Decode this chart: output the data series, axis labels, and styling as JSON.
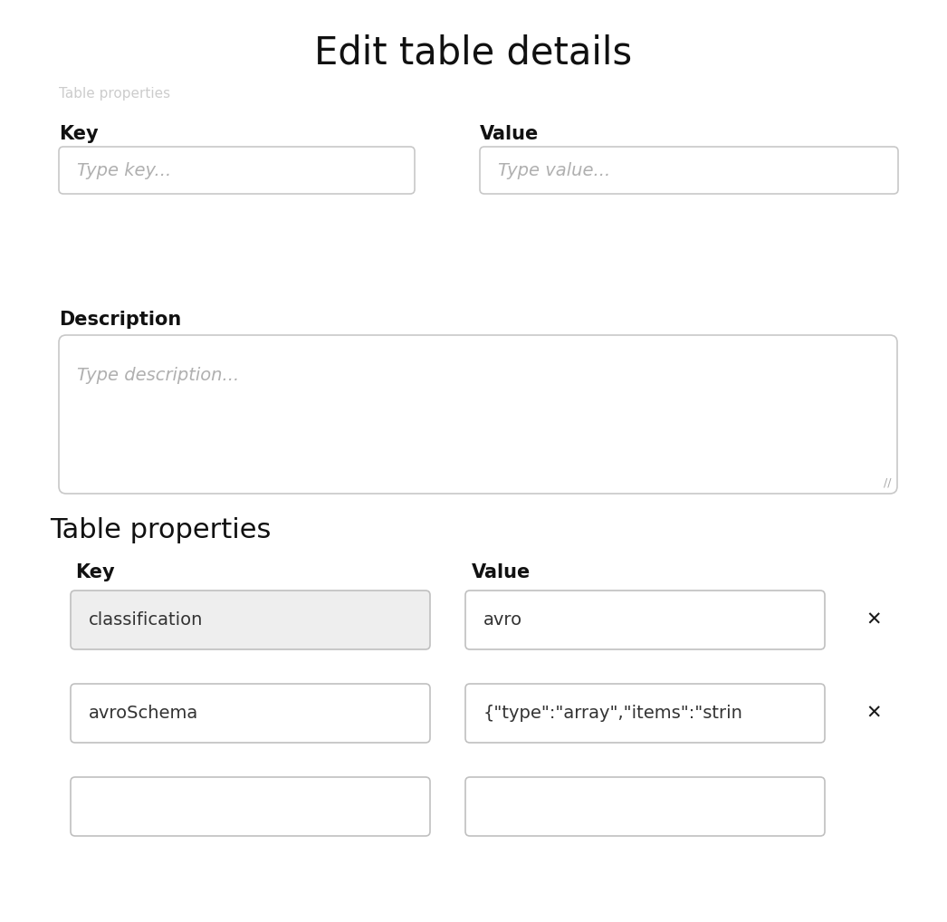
{
  "title": "Edit table details",
  "title_fontsize": 30,
  "bg_color": "#ffffff",
  "border_color": "#c0c0c0",
  "input_bg_white": "#ffffff",
  "input_bg_gray": "#eeeeee",
  "text_color": "#333333",
  "placeholder_color": "#b0b0b0",
  "label_fontsize": 15,
  "input_fontsize": 14,
  "section_fontsize": 22,
  "top_section": {
    "key_label": "Key",
    "value_label": "Value",
    "key_placeholder": "Type key...",
    "value_placeholder": "Type value...",
    "desc_label": "Description",
    "desc_placeholder": "Type description..."
  },
  "table_props": {
    "key_label": "Key",
    "value_label": "Value",
    "rows": [
      {
        "key": "classification",
        "value": "avro",
        "key_bg": "#eeeeee",
        "value_bg": "#ffffff",
        "show_x": true
      },
      {
        "key": "avroSchema",
        "value": "{\"type\":\"array\",\"items\":\"strin",
        "key_bg": "#ffffff",
        "value_bg": "#ffffff",
        "show_x": true
      },
      {
        "key": "",
        "value": "",
        "key_bg": "#ffffff",
        "value_bg": "#ffffff",
        "show_x": false
      }
    ]
  },
  "breadcrumb": "Table properties",
  "breadcrumb_color": "#cccccc",
  "resize_handle": "//",
  "x_mark": "✕"
}
